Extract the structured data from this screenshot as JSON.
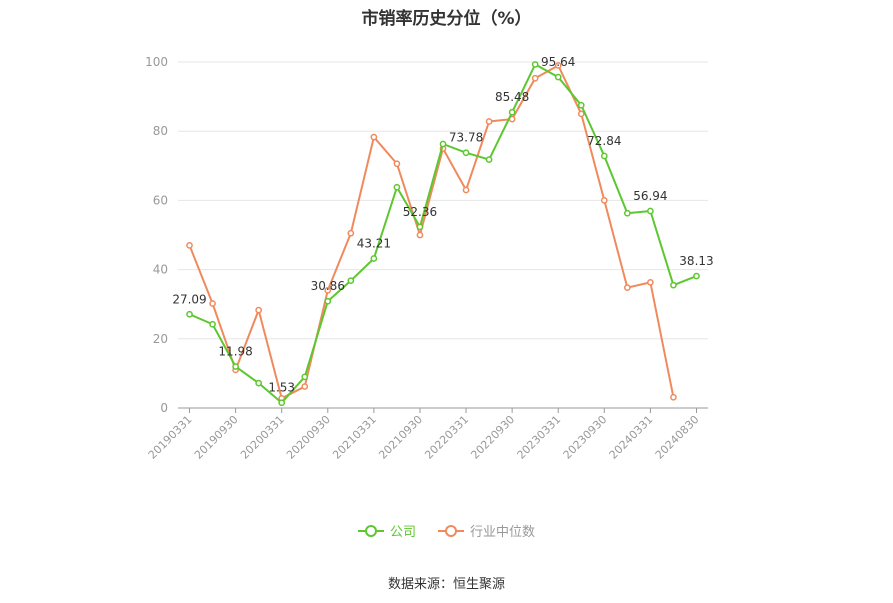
{
  "title": "市销率历史分位（%）",
  "legend": {
    "company": "公司",
    "industry": "行业中位数"
  },
  "source": "数据来源：恒生聚源",
  "colors": {
    "company": "#5cc72f",
    "industry": "#f08a5d",
    "grid": "#e6e6e6",
    "axis": "#999999",
    "label": "#333333"
  },
  "chart_data": {
    "type": "line",
    "title": "市销率历史分位（%）",
    "ylim": [
      0,
      100
    ],
    "yticks": [
      0,
      20,
      40,
      60,
      80,
      100
    ],
    "grid": true,
    "legend_position": "bottom",
    "tick_labels": [
      "20190331",
      "20190930",
      "20200331",
      "20200930",
      "20210331",
      "20210930",
      "20220331",
      "20220930",
      "20230331",
      "20230930",
      "20240331",
      "20240830"
    ],
    "x": [
      "20190331",
      "20190630",
      "20190930",
      "20191231",
      "20200331",
      "20200630",
      "20200930",
      "20201231",
      "20210331",
      "20210630",
      "20210930",
      "20211231",
      "20220331",
      "20220630",
      "20220930",
      "20221231",
      "20230331",
      "20230630",
      "20230930",
      "20231231",
      "20240331",
      "20240630",
      "20240830"
    ],
    "series": [
      {
        "name": "公司",
        "values": [
          27.09,
          24.2,
          11.98,
          7.2,
          1.53,
          9.0,
          30.86,
          36.8,
          43.21,
          63.8,
          52.36,
          76.3,
          73.78,
          71.8,
          85.48,
          99.3,
          95.64,
          87.5,
          72.84,
          56.3,
          56.94,
          35.5,
          38.13
        ],
        "labels": {
          "0": "27.09",
          "2": "11.98",
          "4": "1.53",
          "6": "30.86",
          "8": "43.21",
          "10": "52.36",
          "12": "73.78",
          "14": "85.48",
          "16": "95.64",
          "18": "72.84",
          "20": "56.94",
          "22": "38.13"
        }
      },
      {
        "name": "行业中位数",
        "values": [
          47.0,
          30.2,
          11.0,
          28.3,
          2.8,
          6.2,
          34.0,
          50.5,
          78.3,
          70.6,
          50.0,
          75.0,
          63.0,
          82.8,
          83.5,
          95.3,
          99.0,
          85.0,
          60.0,
          34.8,
          36.3,
          3.1,
          null
        ]
      }
    ]
  }
}
